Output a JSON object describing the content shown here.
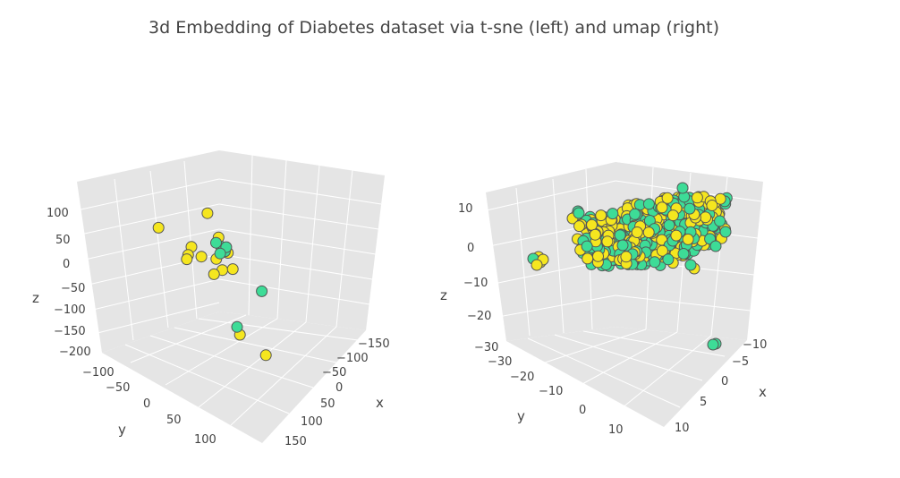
{
  "title": "3d Embedding of Diabetes dataset via t-sne (left) and  umap (right)",
  "colors": {
    "class_a": "#f5e61f",
    "class_b": "#3ddc97",
    "edge": "#555555",
    "pane": "#e5e5e5",
    "grid": "#ffffff"
  },
  "chart_data": [
    {
      "type": "scatter",
      "title": "t-sne",
      "axes": {
        "x": {
          "label": "x",
          "ticks": [
            "−150",
            "−100",
            "−50",
            "0",
            "50",
            "100",
            "150"
          ]
        },
        "y": {
          "label": "y",
          "ticks": [
            "−100",
            "−50",
            "0",
            "50",
            "100"
          ]
        },
        "z": {
          "label": "z",
          "ticks": [
            "100",
            "50",
            "0",
            "−50",
            "−100",
            "−150",
            "−200"
          ]
        }
      },
      "series": [
        {
          "color": "#f5e61f",
          "points": [
            [
              -40,
              10,
              130
            ],
            [
              -150,
              -50,
              60
            ],
            [
              -80,
              5,
              40
            ],
            [
              -90,
              10,
              20
            ],
            [
              -95,
              15,
              10
            ],
            [
              -60,
              25,
              25
            ],
            [
              10,
              20,
              45
            ],
            [
              -20,
              20,
              25
            ],
            [
              -10,
              40,
              5
            ],
            [
              20,
              30,
              10
            ],
            [
              -30,
              35,
              -10
            ],
            [
              30,
              60,
              -140
            ],
            [
              100,
              50,
              -180
            ],
            [
              -10,
              5,
              75
            ],
            [
              5,
              -10,
              40
            ]
          ]
        },
        {
          "color": "#3ddc97",
          "points": [
            [
              -5,
              10,
              55
            ],
            [
              0,
              15,
              50
            ],
            [
              5,
              10,
              45
            ],
            [
              10,
              5,
              55
            ],
            [
              -10,
              20,
              40
            ],
            [
              120,
              -60,
              -50
            ],
            [
              20,
              70,
              -120
            ],
            [
              -15,
              0,
              60
            ]
          ]
        }
      ]
    },
    {
      "type": "scatter",
      "title": "umap",
      "axes": {
        "x": {
          "label": "x",
          "ticks": [
            "−10",
            "−5",
            "0",
            "5",
            "10"
          ]
        },
        "y": {
          "label": "y",
          "ticks": [
            "−30",
            "−20",
            "−10",
            "0",
            "10"
          ]
        },
        "z": {
          "label": "z",
          "ticks": [
            "10",
            "0",
            "−10",
            "−20",
            "−30"
          ]
        }
      },
      "series": [
        {
          "color": "#f5e61f",
          "points": [
            [
              0,
              0,
              0
            ]
          ]
        },
        {
          "color": "#3ddc97",
          "points": [
            [
              -12,
              12,
              -30
            ]
          ]
        }
      ]
    }
  ]
}
